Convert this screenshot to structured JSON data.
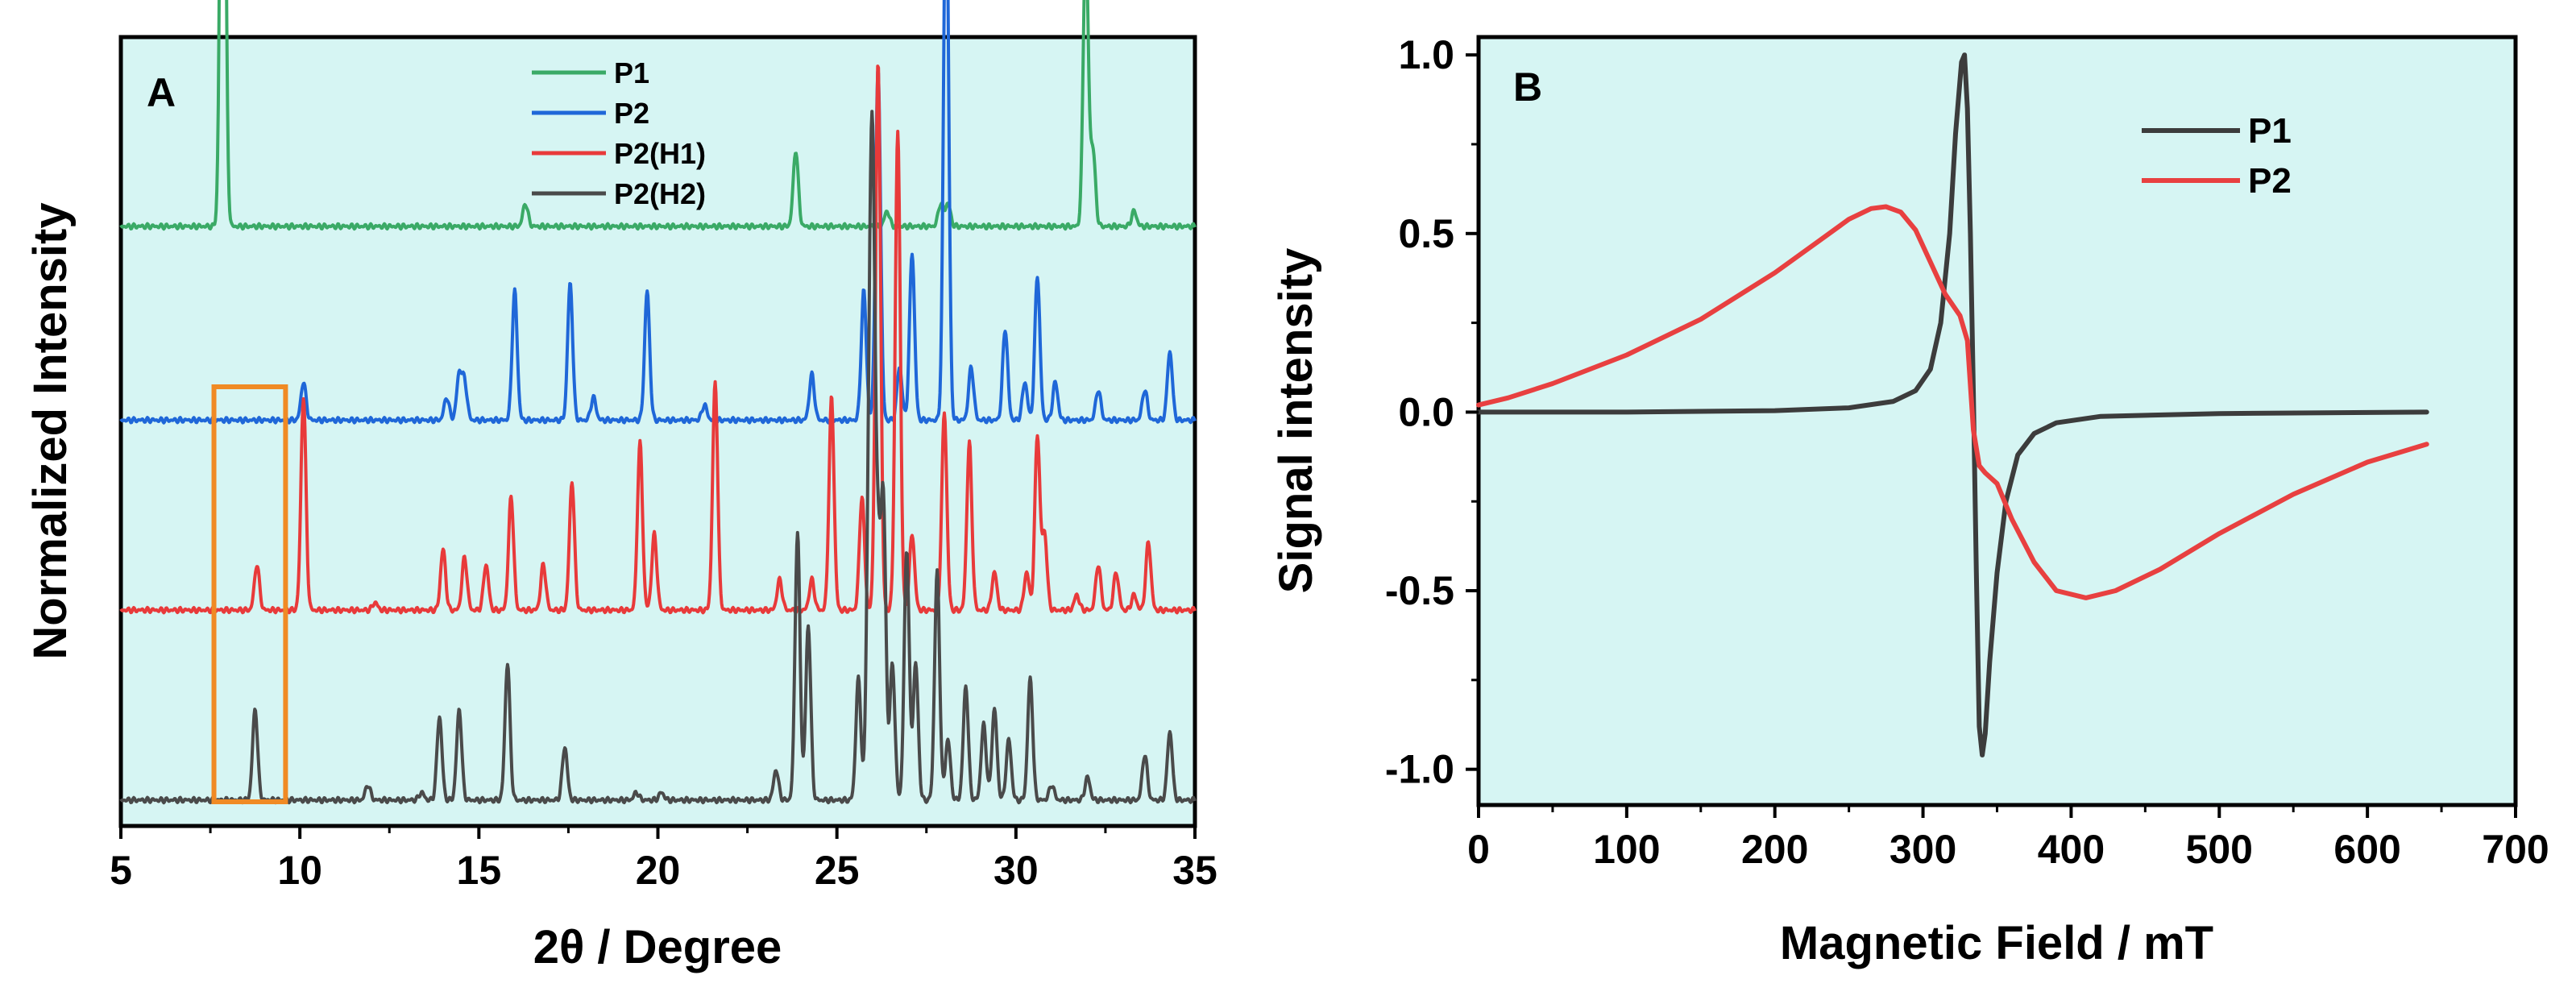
{
  "colors": {
    "background": "#d6f5f3",
    "frame": "#000000",
    "box": "#f08a24",
    "p1_xrd": "#3aaa66",
    "p2_xrd": "#1f67d8",
    "p2h1_xrd": "#e83a3a",
    "p2h2_xrd": "#4a4a4a",
    "p1_epr": "#3c3c3c",
    "p2_epr": "#e84040"
  },
  "chart_data": [
    {
      "panel": "A",
      "type": "line",
      "xlabel": "2θ / Degree",
      "ylabel": "Normalized Intensity",
      "xlim": [
        5,
        35
      ],
      "xticks": [
        5,
        10,
        15,
        20,
        25,
        30,
        35
      ],
      "yticks_shown": false,
      "offset_lines": true,
      "highlight_box_x_range": [
        7.6,
        9.6
      ],
      "legend_position": "top-center",
      "series": [
        {
          "name": "P1",
          "color_key": "p1_xrd",
          "baseline": 0.77,
          "peaks": [
            [
              7.85,
              0.89
            ],
            [
              16.3,
              0.03
            ],
            [
              23.85,
              0.1
            ],
            [
              26.4,
              0.02
            ],
            [
              27.9,
              0.03
            ],
            [
              28.1,
              0.03
            ],
            [
              31.95,
              0.38
            ],
            [
              32.15,
              0.1
            ],
            [
              33.3,
              0.02
            ]
          ]
        },
        {
          "name": "P2",
          "color_key": "p2_xrd",
          "baseline": 0.515,
          "peaks": [
            [
              10.1,
              0.05
            ],
            [
              14.1,
              0.03
            ],
            [
              14.45,
              0.06
            ],
            [
              14.6,
              0.05
            ],
            [
              16.0,
              0.17
            ],
            [
              17.55,
              0.18
            ],
            [
              18.2,
              0.03
            ],
            [
              19.7,
              0.17
            ],
            [
              21.3,
              0.02
            ],
            [
              24.3,
              0.06
            ],
            [
              25.75,
              0.17
            ],
            [
              26.15,
              0.46
            ],
            [
              26.75,
              0.07
            ],
            [
              27.1,
              0.22
            ],
            [
              28.05,
              0.75
            ],
            [
              28.75,
              0.07
            ],
            [
              29.7,
              0.12
            ],
            [
              30.25,
              0.05
            ],
            [
              30.6,
              0.19
            ],
            [
              31.1,
              0.05
            ],
            [
              32.3,
              0.04
            ],
            [
              33.6,
              0.04
            ],
            [
              34.3,
              0.09
            ]
          ]
        },
        {
          "name": "P2(H1)",
          "color_key": "p2h1_xrd",
          "baseline": 0.265,
          "peaks": [
            [
              8.8,
              0.06
            ],
            [
              10.1,
              0.28
            ],
            [
              12.1,
              0.01
            ],
            [
              14.0,
              0.08
            ],
            [
              14.6,
              0.07
            ],
            [
              15.2,
              0.06
            ],
            [
              15.9,
              0.15
            ],
            [
              16.8,
              0.06
            ],
            [
              17.6,
              0.17
            ],
            [
              19.5,
              0.22
            ],
            [
              19.9,
              0.1
            ],
            [
              21.6,
              0.3
            ],
            [
              23.4,
              0.04
            ],
            [
              24.3,
              0.04
            ],
            [
              24.85,
              0.28
            ],
            [
              25.7,
              0.15
            ],
            [
              26.15,
              0.72
            ],
            [
              26.7,
              0.63
            ],
            [
              27.1,
              0.1
            ],
            [
              28.0,
              0.26
            ],
            [
              28.7,
              0.22
            ],
            [
              29.4,
              0.05
            ],
            [
              30.3,
              0.05
            ],
            [
              30.6,
              0.23
            ],
            [
              30.8,
              0.1
            ],
            [
              31.7,
              0.02
            ],
            [
              32.3,
              0.06
            ],
            [
              32.8,
              0.05
            ],
            [
              33.3,
              0.02
            ],
            [
              33.7,
              0.09
            ]
          ]
        },
        {
          "name": "P2(H2)",
          "color_key": "p2h2_xrd",
          "baseline": 0.015,
          "peaks": [
            [
              8.75,
              0.12
            ],
            [
              11.9,
              0.02
            ],
            [
              13.4,
              0.01
            ],
            [
              13.9,
              0.11
            ],
            [
              14.45,
              0.12
            ],
            [
              15.8,
              0.18
            ],
            [
              17.4,
              0.07
            ],
            [
              19.4,
              0.01
            ],
            [
              20.1,
              0.01
            ],
            [
              23.3,
              0.04
            ],
            [
              23.9,
              0.35
            ],
            [
              24.2,
              0.23
            ],
            [
              25.6,
              0.16
            ],
            [
              25.9,
              0.38
            ],
            [
              26.0,
              0.72
            ],
            [
              26.15,
              0.29
            ],
            [
              26.3,
              0.38
            ],
            [
              26.55,
              0.18
            ],
            [
              26.95,
              0.33
            ],
            [
              27.2,
              0.18
            ],
            [
              27.8,
              0.3
            ],
            [
              28.1,
              0.08
            ],
            [
              28.6,
              0.15
            ],
            [
              29.1,
              0.1
            ],
            [
              29.4,
              0.12
            ],
            [
              29.8,
              0.08
            ],
            [
              30.4,
              0.16
            ],
            [
              31.0,
              0.02
            ],
            [
              32.0,
              0.03
            ],
            [
              33.6,
              0.06
            ],
            [
              34.3,
              0.09
            ]
          ]
        }
      ]
    },
    {
      "panel": "B",
      "type": "line",
      "xlabel": "Magnetic Field / mT",
      "ylabel": "Signal intensity",
      "xlim": [
        0,
        700
      ],
      "ylim": [
        -1.1,
        1.05
      ],
      "xticks": [
        "0",
        "100",
        "200",
        "300",
        "400",
        "500",
        "600",
        "700"
      ],
      "yticks": [
        "1.0",
        "0.5",
        "0.0",
        "-0.5",
        "-1.0"
      ],
      "legend_position": "top-right",
      "series": [
        {
          "name": "P1",
          "color_key": "p1_epr",
          "x": [
            0,
            100,
            200,
            250,
            280,
            295,
            305,
            312,
            318,
            322,
            326,
            328,
            330,
            332,
            334,
            336,
            338,
            340,
            342,
            345,
            350,
            356,
            364,
            375,
            390,
            420,
            500,
            640
          ],
          "y": [
            0.0,
            0.0,
            0.004,
            0.012,
            0.03,
            0.06,
            0.12,
            0.25,
            0.5,
            0.78,
            0.98,
            1.0,
            0.85,
            0.5,
            0.05,
            -0.45,
            -0.88,
            -0.96,
            -0.9,
            -0.7,
            -0.45,
            -0.25,
            -0.12,
            -0.06,
            -0.03,
            -0.012,
            -0.004,
            0.0
          ]
        },
        {
          "name": "P2",
          "color_key": "p2_epr",
          "x": [
            0,
            20,
            50,
            100,
            150,
            200,
            230,
            250,
            265,
            275,
            285,
            295,
            305,
            315,
            325,
            330,
            334,
            338,
            342,
            350,
            360,
            375,
            390,
            410,
            430,
            460,
            500,
            550,
            600,
            640
          ],
          "y": [
            0.02,
            0.04,
            0.08,
            0.16,
            0.26,
            0.39,
            0.48,
            0.54,
            0.57,
            0.575,
            0.56,
            0.51,
            0.42,
            0.33,
            0.27,
            0.2,
            -0.05,
            -0.15,
            -0.17,
            -0.2,
            -0.3,
            -0.42,
            -0.5,
            -0.52,
            -0.5,
            -0.44,
            -0.34,
            -0.23,
            -0.14,
            -0.09
          ]
        }
      ]
    }
  ]
}
